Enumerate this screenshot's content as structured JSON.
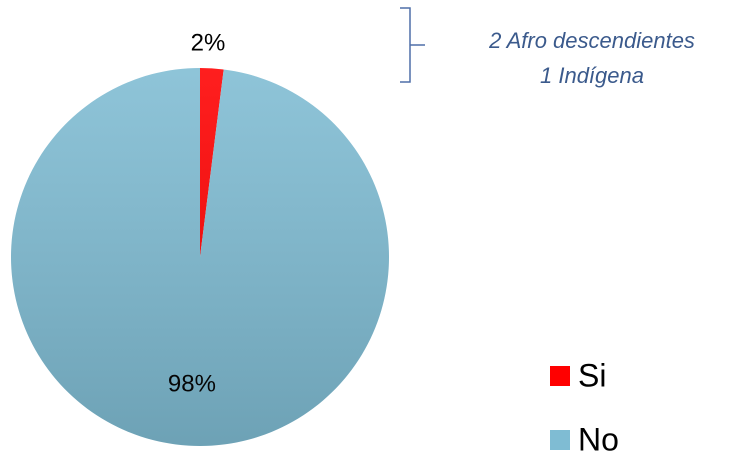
{
  "chart_data": {
    "type": "pie",
    "categories": [
      "Si",
      "No"
    ],
    "values": [
      2,
      98
    ],
    "value_labels": [
      "2%",
      "98%"
    ],
    "colors": [
      "#ff0000",
      "#7fbcd3"
    ],
    "annotations": [
      "2 Afro descendientes",
      "1 Indígena"
    ],
    "legend": "bottom-right"
  }
}
